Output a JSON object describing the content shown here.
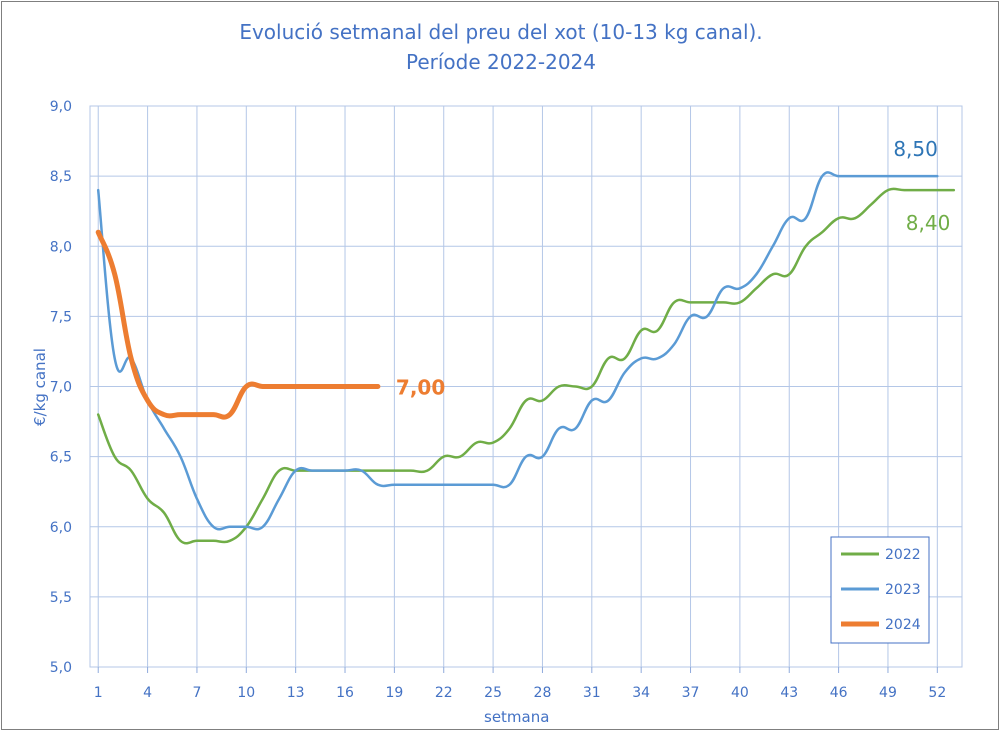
{
  "chart_data": {
    "type": "line",
    "title": "Evolució setmanal del preu del xot (10-13 kg canal).",
    "subtitle": "Període 2022-2024",
    "xlabel": "setmana",
    "ylabel": "€/kg canal",
    "xlim": [
      0.5,
      53.5
    ],
    "ylim": [
      5.0,
      9.0
    ],
    "yticks": [
      "5,0",
      "5,5",
      "6,0",
      "6,5",
      "7,0",
      "7,5",
      "8,0",
      "8,5",
      "9,0"
    ],
    "xticks": [
      "1",
      "4",
      "7",
      "10",
      "13",
      "16",
      "19",
      "22",
      "25",
      "28",
      "31",
      "34",
      "37",
      "40",
      "43",
      "46",
      "49",
      "52"
    ],
    "grid": true,
    "legend": "bottom-right",
    "series": [
      {
        "name": "2022",
        "color": "#70ad47",
        "x": [
          1,
          2,
          3,
          4,
          5,
          6,
          7,
          8,
          9,
          10,
          11,
          12,
          13,
          14,
          15,
          16,
          17,
          18,
          19,
          20,
          21,
          22,
          23,
          24,
          25,
          26,
          27,
          28,
          29,
          30,
          31,
          32,
          33,
          34,
          35,
          36,
          37,
          38,
          39,
          40,
          41,
          42,
          43,
          44,
          45,
          46,
          47,
          48,
          49,
          50,
          51,
          52,
          53
        ],
        "values": [
          6.8,
          6.5,
          6.4,
          6.2,
          6.1,
          5.9,
          5.9,
          5.9,
          5.9,
          6.0,
          6.2,
          6.4,
          6.4,
          6.4,
          6.4,
          6.4,
          6.4,
          6.4,
          6.4,
          6.4,
          6.4,
          6.5,
          6.5,
          6.6,
          6.6,
          6.7,
          6.9,
          6.9,
          7.0,
          7.0,
          7.0,
          7.2,
          7.2,
          7.4,
          7.4,
          7.6,
          7.6,
          7.6,
          7.6,
          7.6,
          7.7,
          7.8,
          7.8,
          8.0,
          8.1,
          8.2,
          8.2,
          8.3,
          8.4,
          8.4,
          8.4,
          8.4,
          8.4
        ],
        "end_label": "8,40",
        "end_label_color": "#70ad47"
      },
      {
        "name": "2023",
        "color": "#5b9bd5",
        "x": [
          1,
          2,
          3,
          4,
          5,
          6,
          7,
          8,
          9,
          10,
          11,
          12,
          13,
          14,
          15,
          16,
          17,
          18,
          19,
          20,
          21,
          22,
          23,
          24,
          25,
          26,
          27,
          28,
          29,
          30,
          31,
          32,
          33,
          34,
          35,
          36,
          37,
          38,
          39,
          40,
          41,
          42,
          43,
          44,
          45,
          46,
          47,
          48,
          49,
          50,
          51,
          52
        ],
        "values": [
          8.4,
          7.2,
          7.2,
          6.9,
          6.7,
          6.5,
          6.2,
          6.0,
          6.0,
          6.0,
          6.0,
          6.2,
          6.4,
          6.4,
          6.4,
          6.4,
          6.4,
          6.3,
          6.3,
          6.3,
          6.3,
          6.3,
          6.3,
          6.3,
          6.3,
          6.3,
          6.5,
          6.5,
          6.7,
          6.7,
          6.9,
          6.9,
          7.1,
          7.2,
          7.2,
          7.3,
          7.5,
          7.5,
          7.7,
          7.7,
          7.8,
          8.0,
          8.2,
          8.2,
          8.5,
          8.5,
          8.5,
          8.5,
          8.5,
          8.5,
          8.5,
          8.5
        ],
        "end_label": "8,50",
        "end_label_color": "#2e75b6"
      },
      {
        "name": "2024",
        "color": "#ed7d31",
        "x": [
          1,
          2,
          3,
          4,
          5,
          6,
          7,
          8,
          9,
          10,
          11,
          12,
          13,
          14,
          15,
          16,
          17,
          18
        ],
        "values": [
          8.1,
          7.8,
          7.2,
          6.9,
          6.8,
          6.8,
          6.8,
          6.8,
          6.8,
          7.0,
          7.0,
          7.0,
          7.0,
          7.0,
          7.0,
          7.0,
          7.0,
          7.0
        ],
        "end_label": "7,00",
        "end_label_color": "#ed7d31"
      }
    ]
  }
}
